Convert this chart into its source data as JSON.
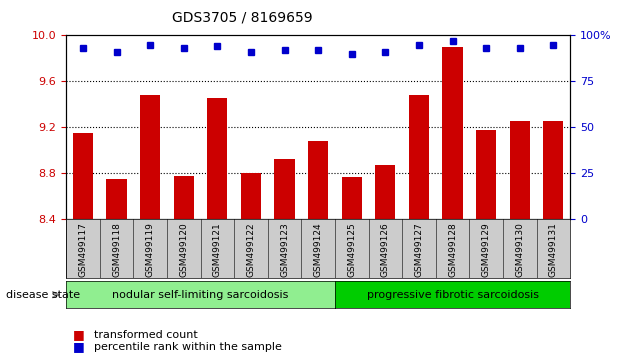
{
  "title": "GDS3705 / 8169659",
  "samples": [
    "GSM499117",
    "GSM499118",
    "GSM499119",
    "GSM499120",
    "GSM499121",
    "GSM499122",
    "GSM499123",
    "GSM499124",
    "GSM499125",
    "GSM499126",
    "GSM499127",
    "GSM499128",
    "GSM499129",
    "GSM499130",
    "GSM499131"
  ],
  "red_values": [
    9.15,
    8.75,
    9.48,
    8.78,
    9.46,
    8.8,
    8.93,
    9.08,
    8.77,
    8.87,
    9.48,
    9.9,
    9.18,
    9.26,
    9.26
  ],
  "blue_values": [
    93,
    91,
    95,
    93,
    94,
    91,
    92,
    92,
    90,
    91,
    95,
    97,
    93,
    93,
    95
  ],
  "ylim_left": [
    8.4,
    10.0
  ],
  "ylim_right": [
    0,
    100
  ],
  "yticks_left": [
    8.4,
    8.8,
    9.2,
    9.6,
    10.0
  ],
  "yticks_right": [
    0,
    25,
    50,
    75,
    100
  ],
  "grid_values": [
    8.8,
    9.2,
    9.6
  ],
  "bar_color": "#cc0000",
  "dot_color": "#0000cc",
  "group1_label": "nodular self-limiting sarcoidosis",
  "group1_color": "#90ee90",
  "group2_label": "progressive fibrotic sarcoidosis",
  "group2_color": "#00cc00",
  "group1_count": 8,
  "group2_count": 7,
  "disease_state_label": "disease state",
  "legend_red_label": "transformed count",
  "legend_blue_label": "percentile rank within the sample",
  "tick_label_color_left": "#cc0000",
  "tick_label_color_right": "#0000cc",
  "bar_bottom": 8.4
}
